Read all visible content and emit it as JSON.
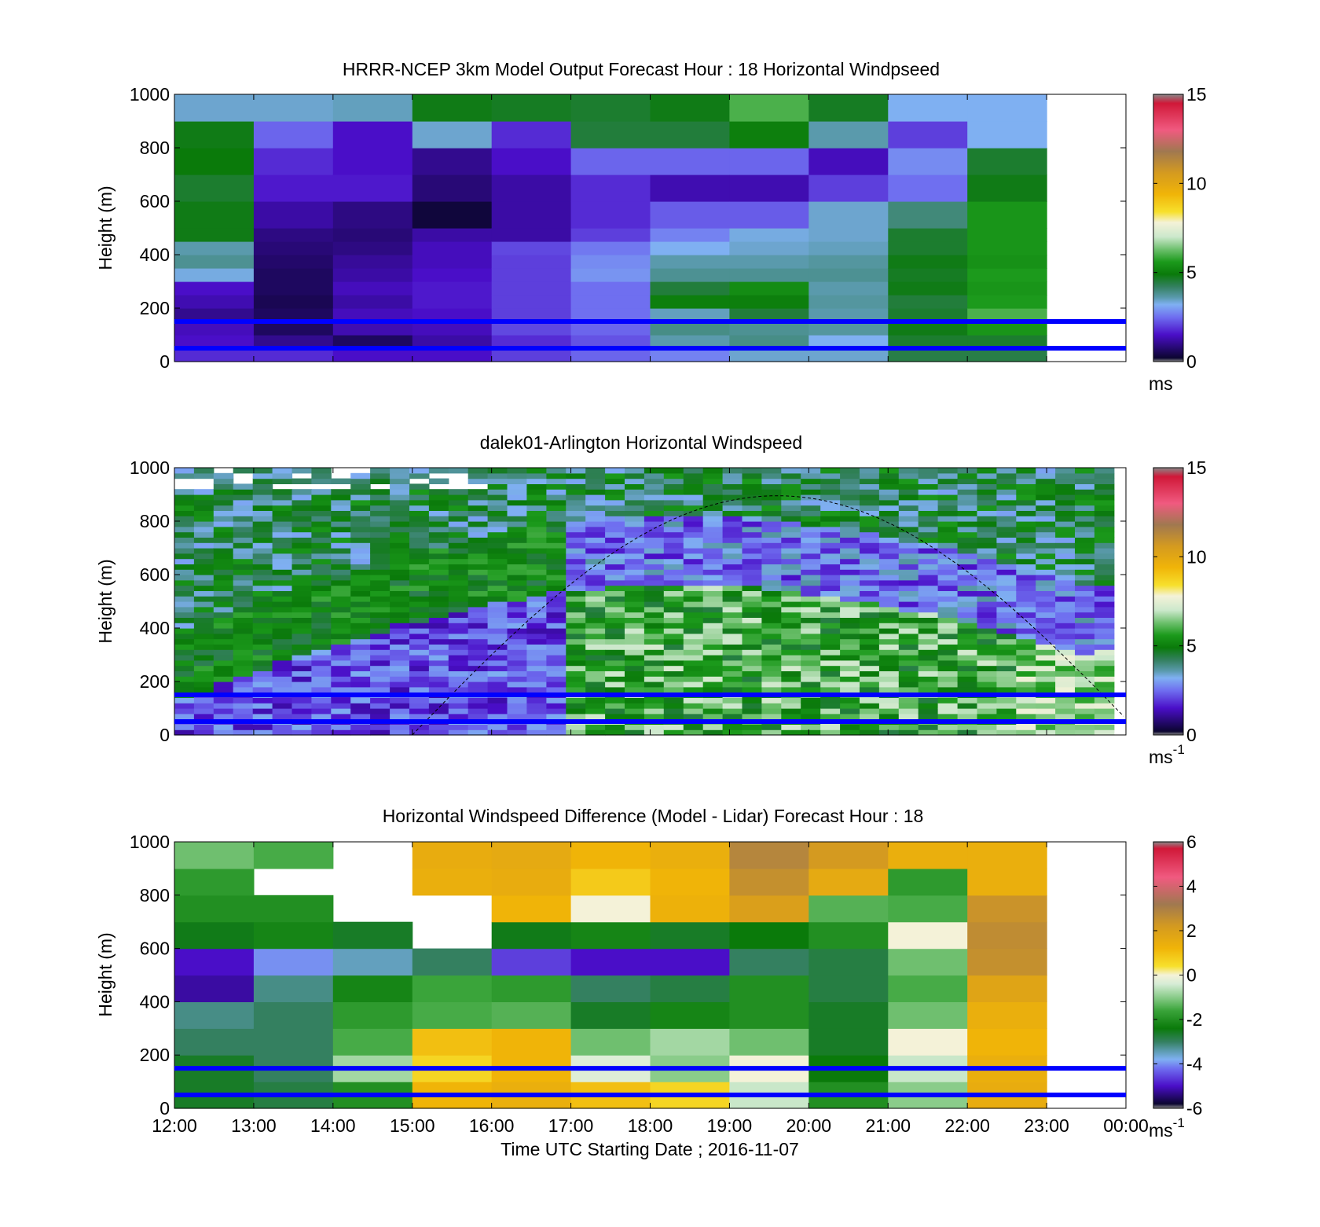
{
  "figure": {
    "xlabel": "Time UTC  Starting Date ; 2016-11-07",
    "x_ticks": [
      "12:00",
      "13:00",
      "14:00",
      "15:00",
      "16:00",
      "17:00",
      "18:00",
      "19:00",
      "20:00",
      "21:00",
      "22:00",
      "23:00",
      "00:00"
    ],
    "y_ticks": [
      "0",
      "200",
      "400",
      "600",
      "800",
      "1000"
    ],
    "ylabel": "Height (m)",
    "reference_lines_m": [
      50,
      150
    ],
    "reference_line_color": "#0000ff"
  },
  "chart_data": [
    {
      "type": "heatmap",
      "title": "HRRR-NCEP 3km Model Output   Forecast Hour : 18 Horizontal Windpseed",
      "ylabel": "Height (m)",
      "xlim_hours": [
        12,
        24
      ],
      "ylim": [
        0,
        1000
      ],
      "colorbar": {
        "range": [
          0,
          15
        ],
        "ticks": [
          "0",
          "5",
          "10",
          "15"
        ],
        "unit": "ms",
        "unit_sup": ""
      },
      "columns_start_hour": [
        12,
        13,
        14,
        15,
        16,
        17,
        18,
        19,
        20,
        21,
        22
      ],
      "levels_m": [
        0,
        50,
        100,
        150,
        200,
        250,
        300,
        350,
        400,
        450,
        500,
        600,
        700,
        800,
        900,
        1000
      ],
      "values": [
        [
          1.8,
          1.5,
          1.4,
          1.0,
          1.3,
          1.5,
          3.3,
          3.8,
          3.6,
          4.8,
          4.8,
          4.6,
          4.9,
          4.8,
          3.4
        ],
        [
          1.8,
          1.0,
          0.6,
          0.6,
          0.5,
          0.6,
          0.6,
          0.7,
          0.8,
          0.9,
          1.2,
          1.6,
          1.8,
          2.4,
          3.4
        ],
        [
          1.5,
          0.6,
          1.3,
          1.4,
          1.2,
          1.4,
          1.2,
          1.1,
          0.9,
          0.8,
          0.9,
          1.6,
          1.5,
          1.5,
          3.5
        ],
        [
          1.5,
          1.2,
          1.4,
          1.5,
          1.6,
          1.6,
          1.5,
          1.4,
          1.4,
          1.2,
          0.3,
          0.8,
          1.0,
          3.4,
          4.8
        ],
        [
          2.0,
          1.8,
          2.1,
          2.0,
          2.0,
          2.0,
          2.0,
          2.0,
          2.1,
          1.2,
          1.2,
          1.2,
          1.5,
          1.8,
          4.7
        ],
        [
          2.4,
          2.2,
          2.4,
          2.5,
          2.5,
          2.5,
          2.9,
          2.8,
          2.6,
          2.0,
          1.8,
          1.8,
          2.4,
          4.5,
          4.6
        ],
        [
          2.7,
          3.6,
          3.9,
          3.5,
          5.0,
          4.5,
          3.8,
          3.6,
          3.2,
          2.7,
          2.3,
          1.3,
          2.4,
          4.5,
          4.8
        ],
        [
          3.4,
          3.9,
          3.8,
          4.5,
          5.0,
          5.3,
          3.8,
          3.6,
          3.4,
          3.3,
          2.3,
          1.3,
          2.4,
          5.0,
          6.0
        ],
        [
          3.4,
          3.2,
          3.7,
          3.6,
          3.7,
          3.6,
          3.8,
          3.7,
          3.5,
          3.4,
          3.4,
          2.0,
          1.4,
          3.6,
          4.7
        ],
        [
          4.4,
          4.6,
          4.8,
          4.6,
          4.5,
          4.8,
          4.7,
          4.8,
          4.6,
          4.6,
          4.0,
          2.5,
          2.8,
          2.0,
          3.2
        ],
        [
          4.4,
          4.6,
          5.5,
          6.0,
          5.6,
          5.5,
          5.6,
          5.4,
          5.5,
          5.5,
          5.5,
          4.8,
          4.6,
          3.2,
          3.2
        ]
      ]
    },
    {
      "type": "heatmap",
      "title": "dalek01-Arlington  Horizontal Windspeed",
      "ylabel": "Height (m)",
      "xlim_hours": [
        12,
        24
      ],
      "ylim": [
        0,
        1000
      ],
      "colorbar": {
        "range": [
          0,
          15
        ],
        "ticks": [
          "0",
          "5",
          "10",
          "15"
        ],
        "unit": "ms",
        "unit_sup": "-1"
      },
      "time_range_hours": [
        12,
        23.85
      ],
      "columns_count": 48,
      "sun_elevation_curve": {
        "peak_hour": 19.6,
        "peak_height_m": 895,
        "zero_hours": [
          15.0,
          24.2
        ]
      }
    },
    {
      "type": "heatmap",
      "title": "Horizontal Windspeed Difference (Model - Lidar) Forecast Hour : 18",
      "ylabel": "Height (m)",
      "xlabel": "Time UTC  Starting Date ; 2016-11-07",
      "xlim_hours": [
        12,
        24
      ],
      "ylim": [
        0,
        1000
      ],
      "colorbar": {
        "range": [
          -6,
          6
        ],
        "ticks": [
          "-6",
          "-4",
          "-2",
          "0",
          "2",
          "4",
          "6"
        ],
        "unit": "ms",
        "unit_sup": "-1"
      },
      "columns_start_hour": [
        12,
        13,
        14,
        15,
        16,
        17,
        18,
        19,
        20,
        21,
        22
      ],
      "levels_m": [
        0,
        100,
        200,
        300,
        400,
        500,
        600,
        700,
        800,
        900,
        1000
      ],
      "values": [
        [
          -2.6,
          -2.6,
          -3.0,
          -3.2,
          -5.2,
          -5.0,
          -2.5,
          -2.0,
          -1.8,
          -1.2
        ],
        [
          -2.8,
          -3.0,
          -3.0,
          -3.0,
          -3.2,
          -4.0,
          -2.2,
          -2.0,
          null,
          -1.5
        ],
        [
          -2.0,
          -0.8,
          -1.5,
          -1.8,
          -2.2,
          -3.5,
          -2.6,
          null,
          null,
          null
        ],
        [
          1.2,
          0.6,
          1.0,
          -1.5,
          -1.6,
          -3.0,
          null,
          null,
          1.4,
          1.5
        ],
        [
          1.4,
          1.2,
          1.2,
          -1.4,
          -1.8,
          -4.6,
          -2.5,
          1.2,
          1.5,
          1.6
        ],
        [
          1.0,
          -0.3,
          -1.2,
          -2.6,
          -3.0,
          -5.0,
          -2.2,
          0.0,
          0.8,
          1.2
        ],
        [
          0.6,
          -1.0,
          -0.8,
          -2.2,
          -2.8,
          -5.0,
          -2.6,
          1.3,
          1.2,
          1.4
        ],
        [
          -0.5,
          0.0,
          -1.2,
          -2.0,
          -2.0,
          -3.0,
          -2.4,
          2.0,
          2.5,
          2.8
        ],
        [
          -2.0,
          -2.4,
          -2.6,
          -2.6,
          -2.8,
          -2.8,
          -2.0,
          -1.4,
          1.6,
          2.2
        ],
        [
          -1.0,
          -0.5,
          0.0,
          -1.2,
          -1.5,
          -1.2,
          0.0,
          -1.5,
          -1.8,
          1.4
        ],
        [
          1.5,
          1.4,
          1.2,
          1.4,
          1.8,
          2.5,
          2.6,
          2.4,
          1.4,
          1.4
        ]
      ]
    }
  ]
}
